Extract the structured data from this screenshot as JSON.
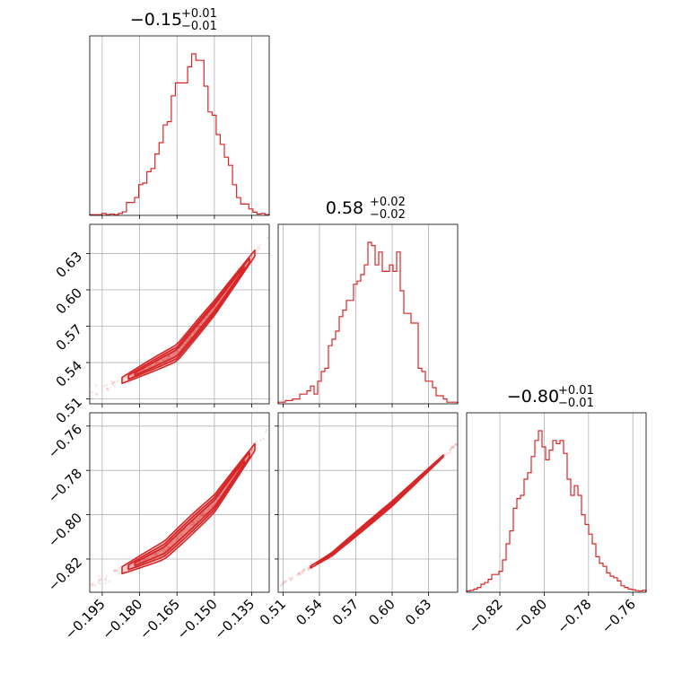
{
  "chart_data": {
    "type": "corner",
    "color": "#d62728",
    "grid": true,
    "parameters": [
      {
        "title": {
          "median": "−0.15",
          "plus": "+0.01",
          "minus": "−0.01"
        },
        "range": [
          -0.2,
          -0.128
        ],
        "ticks": [
          -0.195,
          -0.18,
          -0.165,
          -0.15,
          -0.135
        ],
        "tick_labels": [
          "−0.195",
          "−0.180",
          "−0.165",
          "−0.150",
          "−0.135"
        ],
        "hist_bins": [
          0.004,
          0.004,
          0.004,
          0.012,
          0.004,
          0.008,
          0.004,
          0.012,
          0.022,
          0.08,
          0.08,
          0.11,
          0.19,
          0.2,
          0.27,
          0.29,
          0.38,
          0.45,
          0.56,
          0.58,
          0.74,
          0.82,
          0.82,
          0.82,
          0.92,
          1.0,
          0.96,
          0.96,
          0.8,
          0.64,
          0.62,
          0.5,
          0.44,
          0.36,
          0.31,
          0.19,
          0.11,
          0.07,
          0.07,
          0.04,
          0.02,
          0.008,
          0.012,
          0.004
        ]
      },
      {
        "title": {
          "median": "0.58",
          "plus": "+0.02",
          "minus": "−0.02"
        },
        "range": [
          0.506,
          0.654
        ],
        "ticks": [
          0.51,
          0.54,
          0.57,
          0.6,
          0.63
        ],
        "tick_labels": [
          "0.51",
          "0.54",
          "0.57",
          "0.60",
          "0.63"
        ],
        "hist_bins": [
          0.01,
          0.01,
          0.02,
          0.02,
          0.03,
          0.03,
          0.06,
          0.06,
          0.08,
          0.11,
          0.06,
          0.14,
          0.2,
          0.22,
          0.36,
          0.4,
          0.45,
          0.54,
          0.58,
          0.64,
          0.64,
          0.74,
          0.76,
          0.8,
          0.86,
          1.0,
          0.98,
          0.86,
          0.94,
          0.82,
          0.82,
          0.86,
          0.82,
          0.94,
          0.7,
          0.56,
          0.56,
          0.5,
          0.5,
          0.22,
          0.2,
          0.14,
          0.14,
          0.1,
          0.05,
          0.05,
          0.03,
          0.01,
          0.01,
          0.01
        ]
      },
      {
        "title": {
          "median": "−0.80",
          "plus": "+0.01",
          "minus": "−0.01"
        },
        "range": [
          -0.835,
          -0.754
        ],
        "ticks": [
          -0.82,
          -0.8,
          -0.78,
          -0.76
        ],
        "tick_labels": [
          "−0.82",
          "−0.80",
          "−0.78",
          "−0.76"
        ],
        "hist_bins": [
          0.008,
          0.012,
          0.02,
          0.03,
          0.05,
          0.06,
          0.08,
          0.11,
          0.11,
          0.13,
          0.2,
          0.3,
          0.38,
          0.52,
          0.58,
          0.6,
          0.7,
          0.74,
          0.84,
          0.94,
          1.0,
          0.9,
          0.82,
          0.88,
          0.94,
          0.92,
          0.94,
          0.86,
          0.7,
          0.6,
          0.66,
          0.6,
          0.48,
          0.42,
          0.36,
          0.3,
          0.22,
          0.18,
          0.16,
          0.12,
          0.1,
          0.09,
          0.07,
          0.04,
          0.03,
          0.02,
          0.016,
          0.01,
          0.008,
          0.012
        ]
      }
    ],
    "pairs": [
      {
        "row": 1,
        "col": 0,
        "line": {
          "x": [
            -0.2,
            -0.165,
            -0.15,
            -0.136
          ],
          "y": [
            0.512,
            0.548,
            0.585,
            0.624
          ]
        },
        "band": 0.007,
        "spread_x": 0.003,
        "spread_y": 0.006
      },
      {
        "row": 2,
        "col": 0,
        "line": {
          "x": [
            -0.2,
            -0.17,
            -0.15,
            -0.136
          ],
          "y": [
            -0.832,
            -0.816,
            -0.795,
            -0.773
          ]
        },
        "band": 0.0045,
        "spread_x": 0.003,
        "spread_y": 0.004
      },
      {
        "row": 2,
        "col": 1,
        "line": {
          "x": [
            0.507,
            0.55,
            0.6,
            0.651
          ],
          "y": [
            -0.832,
            -0.818,
            -0.795,
            -0.769
          ]
        },
        "band": 0.0012,
        "spread_x": 0.004,
        "spread_y": 0.0012
      }
    ]
  }
}
